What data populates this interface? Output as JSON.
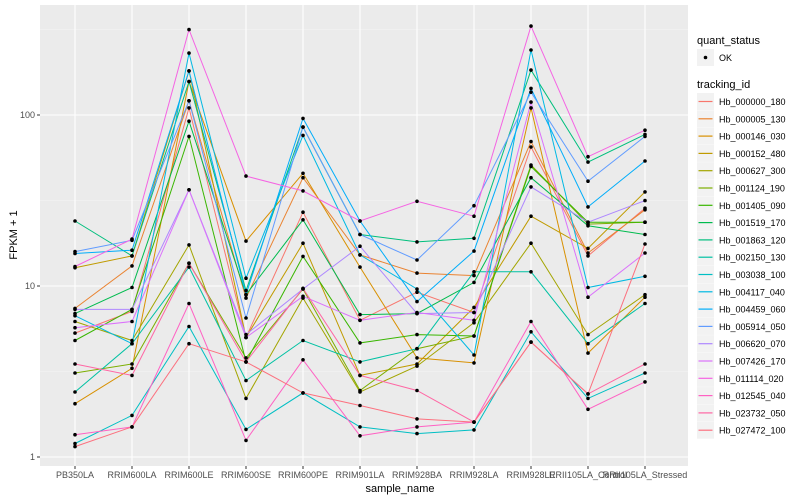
{
  "chart_data": {
    "type": "line",
    "title": "",
    "xlabel": "sample_name",
    "ylabel": "FPKM + 1",
    "yscale": "log10",
    "ylim": [
      0.88,
      420
    ],
    "yticks": [
      1,
      10,
      100
    ],
    "ytick_labels": [
      "1",
      "10",
      "100"
    ],
    "grid": true,
    "legend_position": "right",
    "categories": [
      "PB350LA",
      "RRIM600LA",
      "RRIM600LE",
      "RRIM600SE",
      "RRIM600PE",
      "RRIM901LA",
      "RRIM928BA",
      "RRIM928LA",
      "RRIM928LE",
      "RRII105LA_Control",
      "RRII105LA_Stressed"
    ],
    "legend_shape": {
      "title": "quant_status",
      "items": [
        "OK"
      ]
    },
    "legend_color_title": "tracking_id",
    "series": [
      {
        "name": "Hb_000000_180",
        "color": "#F8766D",
        "values": [
          5.3,
          7.1,
          110,
          5.0,
          27,
          6.3,
          9.2,
          7.0,
          65,
          15.0,
          28.5
        ]
      },
      {
        "name": "Hb_000005_130",
        "color": "#EA8331",
        "values": [
          7.4,
          13.1,
          121,
          8.5,
          43,
          15.2,
          11.9,
          11.5,
          70,
          15.6,
          27.9
        ]
      },
      {
        "name": "Hb_000146_030",
        "color": "#D89000",
        "values": [
          2.05,
          3.3,
          157,
          18.3,
          45.6,
          12.9,
          3.8,
          3.55,
          110,
          4.05,
          8.6
        ]
      },
      {
        "name": "Hb_000152_480",
        "color": "#C09B00",
        "values": [
          12.8,
          15.0,
          181,
          5.0,
          17.8,
          3.0,
          3.5,
          7.5,
          25.6,
          16.6,
          35.5
        ]
      },
      {
        "name": "Hb_000627_300",
        "color": "#A3A500",
        "values": [
          6.2,
          4.8,
          17.4,
          2.2,
          8.5,
          2.4,
          3.4,
          6.1,
          17.8,
          5.2,
          8.9
        ]
      },
      {
        "name": "Hb_001124_190",
        "color": "#7CAE00",
        "values": [
          3.1,
          3.5,
          13.6,
          3.8,
          9.6,
          2.45,
          4.3,
          5.1,
          51,
          23.0,
          23.6
        ]
      },
      {
        "name": "Hb_001405_090",
        "color": "#39B600",
        "values": [
          4.8,
          7.3,
          75,
          3.6,
          14.9,
          4.65,
          5.2,
          5.1,
          50,
          23.6,
          23.6
        ]
      },
      {
        "name": "Hb_001519_170",
        "color": "#00BB4E",
        "values": [
          6.9,
          9.8,
          92,
          8.9,
          24.4,
          6.8,
          6.9,
          10.5,
          43,
          22.5,
          20.0
        ]
      },
      {
        "name": "Hb_001863_120",
        "color": "#00BF7D",
        "values": [
          24,
          15.0,
          157,
          9.4,
          85,
          20,
          18.1,
          19,
          183,
          53,
          77
        ]
      },
      {
        "name": "Hb_002150_130",
        "color": "#00C1A3",
        "values": [
          2.4,
          4.6,
          12.9,
          2.8,
          4.8,
          3.6,
          4.3,
          12.1,
          12.1,
          4.6,
          7.9
        ]
      },
      {
        "name": "Hb_003038_100",
        "color": "#00BFC4",
        "values": [
          1.2,
          1.75,
          5.8,
          1.45,
          2.37,
          1.5,
          1.37,
          1.44,
          5.4,
          2.2,
          3.1
        ]
      },
      {
        "name": "Hb_004117_040",
        "color": "#00B9E3",
        "values": [
          6.7,
          4.6,
          230,
          11.1,
          76,
          15.2,
          9.6,
          3.95,
          240,
          9.8,
          11.4
        ]
      },
      {
        "name": "Hb_004459_060",
        "color": "#00ADFA",
        "values": [
          15.5,
          16.2,
          181,
          8.9,
          95.5,
          24,
          8.1,
          16,
          143,
          29,
          53.8
        ]
      },
      {
        "name": "Hb_005914_050",
        "color": "#619CFF",
        "values": [
          15.9,
          18.5,
          121,
          6.5,
          85,
          20,
          14.2,
          29.5,
          136,
          41,
          75
        ]
      },
      {
        "name": "Hb_006620_070",
        "color": "#AE87FF",
        "values": [
          7.3,
          7.3,
          36.5,
          5.2,
          9.6,
          17.1,
          6.9,
          7.0,
          38,
          23.6,
          31.6
        ]
      },
      {
        "name": "Hb_007426_170",
        "color": "#DB72FB",
        "values": [
          5.7,
          6.2,
          36.5,
          5.0,
          8.7,
          6.3,
          7.0,
          6.3,
          119,
          8.6,
          15.6
        ]
      },
      {
        "name": "Hb_011114_020",
        "color": "#F564E3",
        "values": [
          13.0,
          18.8,
          316,
          43.9,
          36,
          24,
          31.3,
          25.6,
          331,
          57,
          81.5
        ]
      },
      {
        "name": "Hb_012545_040",
        "color": "#FF61C3",
        "values": [
          1.35,
          1.5,
          7.9,
          1.25,
          3.7,
          1.33,
          1.5,
          1.6,
          6.2,
          1.9,
          2.75
        ]
      },
      {
        "name": "Hb_023732_050",
        "color": "#FF67A4",
        "values": [
          3.5,
          3.0,
          13.6,
          3.6,
          9.7,
          3.0,
          2.45,
          1.6,
          4.7,
          2.34,
          3.5
        ]
      },
      {
        "name": "Hb_027472_100",
        "color": "#FC717F",
        "values": [
          1.15,
          1.5,
          4.6,
          3.6,
          2.37,
          2.0,
          1.67,
          1.6,
          4.7,
          2.34,
          17.6
        ]
      }
    ]
  }
}
